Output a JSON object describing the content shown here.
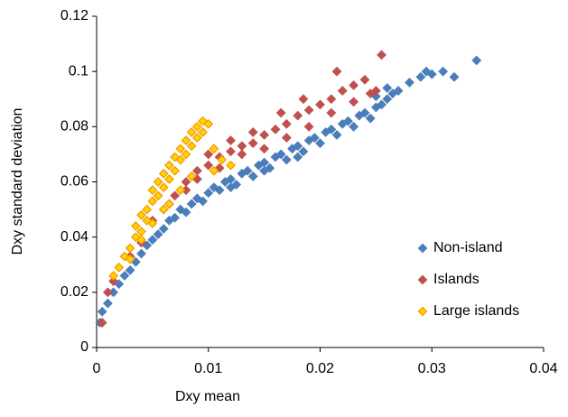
{
  "chart_data": {
    "type": "scatter",
    "x_label": "Dxy mean",
    "y_label": "Dxy standard deviation",
    "xlim": [
      0,
      0.04
    ],
    "ylim": [
      0,
      0.12
    ],
    "xticks": [
      0,
      0.01,
      0.02,
      0.03,
      0.04
    ],
    "yticks": [
      0,
      0.02,
      0.04,
      0.06,
      0.08,
      0.1,
      0.12
    ],
    "grid": false,
    "legend_loc": "lower right",
    "series": [
      {
        "name": "Non-island",
        "color": "#4a7ebb",
        "edgecolor": "#4a7ebb",
        "x": [
          0.0003,
          0.0005,
          0.001,
          0.0015,
          0.002,
          0.0025,
          0.003,
          0.0035,
          0.004,
          0.0045,
          0.005,
          0.0055,
          0.006,
          0.0065,
          0.007,
          0.0075,
          0.008,
          0.0085,
          0.009,
          0.0095,
          0.01,
          0.0105,
          0.011,
          0.0115,
          0.012,
          0.0125,
          0.013,
          0.0135,
          0.014,
          0.0145,
          0.015,
          0.0155,
          0.016,
          0.0165,
          0.017,
          0.0175,
          0.018,
          0.0185,
          0.019,
          0.0195,
          0.02,
          0.0205,
          0.021,
          0.0215,
          0.022,
          0.0225,
          0.023,
          0.0235,
          0.024,
          0.0245,
          0.025,
          0.0255,
          0.026,
          0.0265,
          0.027,
          0.028,
          0.029,
          0.0295,
          0.03,
          0.031,
          0.032,
          0.034,
          0.026,
          0.025,
          0.018,
          0.015,
          0.012
        ],
        "y": [
          0.009,
          0.013,
          0.016,
          0.02,
          0.023,
          0.026,
          0.028,
          0.031,
          0.034,
          0.037,
          0.039,
          0.041,
          0.043,
          0.046,
          0.047,
          0.05,
          0.049,
          0.052,
          0.054,
          0.053,
          0.056,
          0.058,
          0.057,
          0.06,
          0.061,
          0.059,
          0.063,
          0.064,
          0.062,
          0.066,
          0.067,
          0.065,
          0.069,
          0.07,
          0.068,
          0.072,
          0.073,
          0.071,
          0.075,
          0.076,
          0.074,
          0.078,
          0.079,
          0.077,
          0.081,
          0.082,
          0.08,
          0.084,
          0.085,
          0.083,
          0.087,
          0.088,
          0.09,
          0.092,
          0.093,
          0.096,
          0.098,
          0.1,
          0.099,
          0.1,
          0.098,
          0.104,
          0.094,
          0.091,
          0.069,
          0.064,
          0.058
        ]
      },
      {
        "name": "Islands",
        "color": "#c0504d",
        "edgecolor": "#c0504d",
        "x": [
          0.0005,
          0.001,
          0.0015,
          0.003,
          0.004,
          0.005,
          0.006,
          0.007,
          0.008,
          0.009,
          0.01,
          0.011,
          0.012,
          0.013,
          0.014,
          0.015,
          0.016,
          0.017,
          0.018,
          0.019,
          0.02,
          0.021,
          0.022,
          0.023,
          0.024,
          0.025,
          0.0255,
          0.0215,
          0.0185,
          0.0165,
          0.014,
          0.012,
          0.01,
          0.008,
          0.0065,
          0.009,
          0.011,
          0.013,
          0.015,
          0.017,
          0.019,
          0.021,
          0.023,
          0.0245
        ],
        "y": [
          0.009,
          0.02,
          0.024,
          0.033,
          0.038,
          0.046,
          0.05,
          0.055,
          0.06,
          0.064,
          0.066,
          0.069,
          0.071,
          0.073,
          0.074,
          0.077,
          0.079,
          0.081,
          0.084,
          0.086,
          0.088,
          0.09,
          0.093,
          0.095,
          0.097,
          0.093,
          0.106,
          0.1,
          0.09,
          0.085,
          0.078,
          0.075,
          0.07,
          0.057,
          0.052,
          0.061,
          0.065,
          0.07,
          0.072,
          0.076,
          0.08,
          0.085,
          0.089,
          0.092
        ]
      },
      {
        "name": "Large islands",
        "color": "#ffd400",
        "edgecolor": "#f59a00",
        "x": [
          0.0015,
          0.002,
          0.0025,
          0.003,
          0.0035,
          0.0035,
          0.004,
          0.004,
          0.0045,
          0.0045,
          0.005,
          0.005,
          0.0055,
          0.0055,
          0.006,
          0.006,
          0.0065,
          0.0065,
          0.007,
          0.007,
          0.0075,
          0.0075,
          0.008,
          0.008,
          0.0085,
          0.0085,
          0.009,
          0.009,
          0.0095,
          0.0095,
          0.01,
          0.0105,
          0.0112,
          0.012,
          0.0105,
          0.0085,
          0.0075,
          0.0065,
          0.006,
          0.005,
          0.004,
          0.003
        ],
        "y": [
          0.026,
          0.029,
          0.033,
          0.036,
          0.04,
          0.044,
          0.042,
          0.048,
          0.05,
          0.046,
          0.053,
          0.057,
          0.055,
          0.06,
          0.058,
          0.063,
          0.061,
          0.066,
          0.064,
          0.069,
          0.068,
          0.072,
          0.07,
          0.075,
          0.073,
          0.078,
          0.076,
          0.08,
          0.078,
          0.082,
          0.081,
          0.072,
          0.068,
          0.066,
          0.064,
          0.062,
          0.057,
          0.052,
          0.05,
          0.045,
          0.039,
          0.032
        ]
      }
    ]
  }
}
